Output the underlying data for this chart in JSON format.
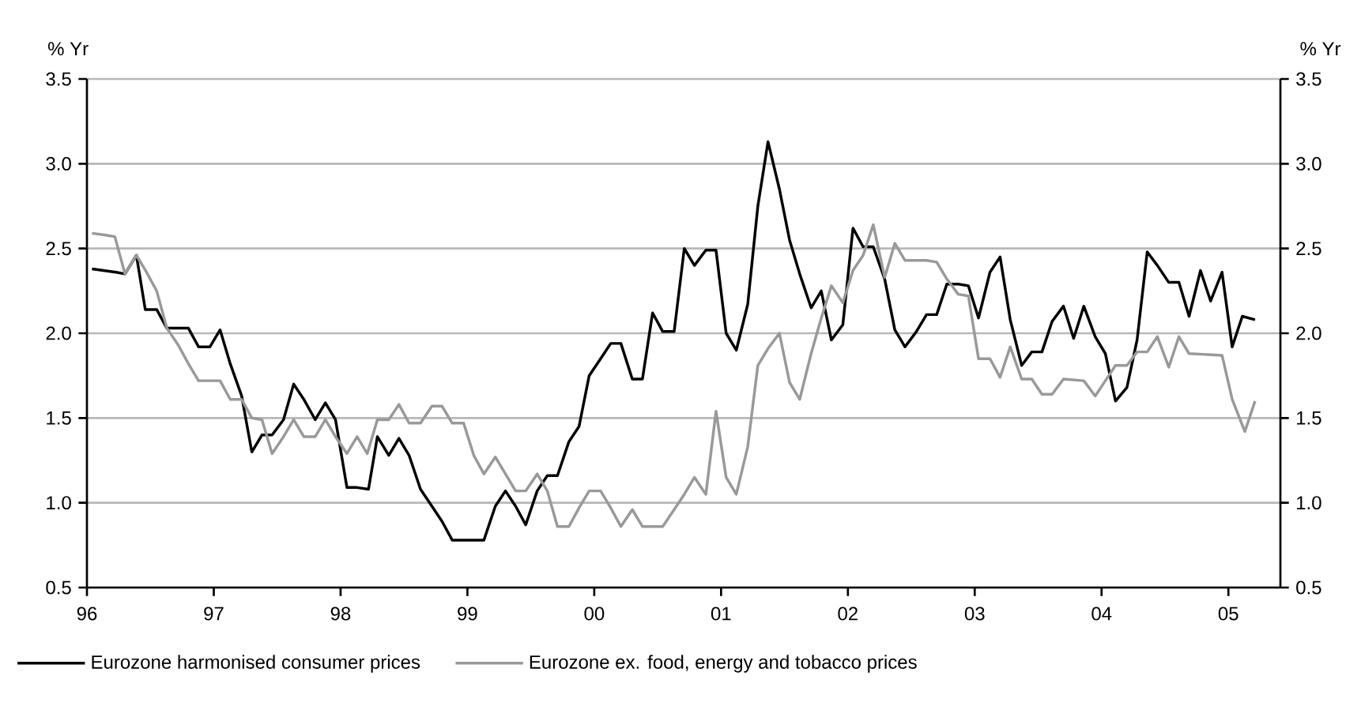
{
  "chart_data": {
    "type": "line",
    "ylabel": "% Yr",
    "y2label": "% Yr",
    "xlim": [
      1996,
      2005.41
    ],
    "xticks": [
      {
        "value": 1996,
        "label": "96"
      },
      {
        "value": 1997,
        "label": "97"
      },
      {
        "value": 1998,
        "label": "98"
      },
      {
        "value": 1999,
        "label": "99"
      },
      {
        "value": 2000,
        "label": "00"
      },
      {
        "value": 2001,
        "label": "01"
      },
      {
        "value": 2002,
        "label": "02"
      },
      {
        "value": 2003,
        "label": "03"
      },
      {
        "value": 2004,
        "label": "04"
      },
      {
        "value": 2005,
        "label": "05"
      }
    ],
    "ylim": [
      0.5,
      3.5
    ],
    "yticks": [
      0.5,
      {
        "value": 1,
        "label": "1.0"
      },
      1.5,
      {
        "value": 2,
        "label": "2.0"
      },
      2.5,
      {
        "value": 3,
        "label": "3.0"
      },
      3.5
    ],
    "y2lim": [
      0.5,
      3.5
    ],
    "y2ticks": [
      0.5,
      {
        "value": 1,
        "label": "1.0"
      },
      1.5,
      {
        "value": 2,
        "label": "2.0"
      },
      2.5,
      {
        "value": 3,
        "label": "3.0"
      },
      3.5
    ],
    "grid": "y",
    "legend": "bottom",
    "marker": "none",
    "line_style": "solid",
    "series": [
      {
        "name": "Eurozone harmonised consumer prices",
        "color": "#000000",
        "x": [
          1996.04,
          1996.23,
          1996.3,
          1996.39,
          1996.46,
          1996.55,
          1996.63,
          1996.8,
          1996.88,
          1996.97,
          1997.05,
          1997.13,
          1997.22,
          1997.3,
          1997.38,
          1997.46,
          1997.55,
          1997.63,
          1997.71,
          1997.8,
          1997.88,
          1997.96,
          1998.05,
          1998.13,
          1998.22,
          1998.29,
          1998.38,
          1998.46,
          1998.54,
          1998.63,
          1998.72,
          1998.8,
          1998.88,
          1999.13,
          1999.22,
          1999.3,
          1999.38,
          1999.46,
          1999.55,
          1999.63,
          1999.71,
          1999.8,
          1999.88,
          1999.96,
          2000.05,
          2000.13,
          2000.21,
          2000.3,
          2000.38,
          2000.46,
          2000.54,
          2000.63,
          2000.71,
          2000.79,
          2000.88,
          2000.96,
          2001.04,
          2001.12,
          2001.21,
          2001.29,
          2001.37,
          2001.46,
          2001.54,
          2001.62,
          2001.71,
          2001.79,
          2001.87,
          2001.96,
          2002.04,
          2002.12,
          2002.2,
          2002.29,
          2002.37,
          2002.45,
          2002.54,
          2002.62,
          2002.7,
          2002.78,
          2002.87,
          2002.95,
          2003.03,
          2003.12,
          2003.2,
          2003.28,
          2003.37,
          2003.45,
          2003.53,
          2003.61,
          2003.7,
          2003.78,
          2003.86,
          2003.95,
          2004.03,
          2004.11,
          2004.2,
          2004.28,
          2004.36,
          2004.44,
          2004.53,
          2004.61,
          2004.69,
          2004.78,
          2004.86,
          2004.95,
          2005.03,
          2005.11,
          2005.21
        ],
        "values": [
          2.38,
          2.36,
          2.35,
          2.46,
          2.14,
          2.14,
          2.03,
          2.03,
          1.92,
          1.92,
          2.02,
          1.82,
          1.63,
          1.3,
          1.4,
          1.4,
          1.49,
          1.7,
          1.61,
          1.49,
          1.59,
          1.49,
          1.09,
          1.09,
          1.08,
          1.39,
          1.28,
          1.38,
          1.28,
          1.08,
          0.98,
          0.89,
          0.78,
          0.78,
          0.98,
          1.07,
          0.98,
          0.87,
          1.07,
          1.16,
          1.16,
          1.36,
          1.45,
          1.75,
          1.85,
          1.94,
          1.94,
          1.73,
          1.73,
          2.12,
          2.01,
          2.01,
          2.5,
          2.4,
          2.49,
          2.49,
          2.0,
          1.9,
          2.17,
          2.75,
          3.13,
          2.85,
          2.55,
          2.35,
          2.15,
          2.25,
          1.96,
          2.05,
          2.62,
          2.51,
          2.51,
          2.32,
          2.02,
          1.92,
          2.01,
          2.11,
          2.11,
          2.29,
          2.29,
          2.28,
          2.09,
          2.36,
          2.45,
          2.08,
          1.81,
          1.89,
          1.89,
          2.07,
          2.16,
          1.97,
          2.16,
          1.98,
          1.88,
          1.6,
          1.68,
          1.96,
          2.48,
          2.4,
          2.3,
          2.3,
          2.1,
          2.37,
          2.19,
          2.36,
          1.92,
          2.1,
          2.08
        ]
      },
      {
        "name": "Eurozone ex. food, energy and tobacco prices",
        "color": "#999999",
        "x": [
          1996.04,
          1996.14,
          1996.22,
          1996.3,
          1996.39,
          1996.47,
          1996.55,
          1996.63,
          1996.72,
          1996.8,
          1996.88,
          1996.97,
          1997.05,
          1997.13,
          1997.22,
          1997.3,
          1997.38,
          1997.46,
          1997.55,
          1997.63,
          1997.71,
          1997.8,
          1997.88,
          1997.96,
          1998.05,
          1998.13,
          1998.21,
          1998.29,
          1998.38,
          1998.46,
          1998.54,
          1998.63,
          1998.72,
          1998.8,
          1998.88,
          1998.97,
          1999.05,
          1999.13,
          1999.22,
          1999.3,
          1999.38,
          1999.46,
          1999.55,
          1999.63,
          1999.71,
          1999.8,
          1999.88,
          1999.96,
          2000.05,
          2000.13,
          2000.21,
          2000.3,
          2000.38,
          2000.54,
          2000.63,
          2000.71,
          2000.79,
          2000.88,
          2000.96,
          2001.04,
          2001.12,
          2001.21,
          2001.29,
          2001.37,
          2001.46,
          2001.54,
          2001.62,
          2001.71,
          2001.79,
          2001.87,
          2001.96,
          2002.04,
          2002.12,
          2002.2,
          2002.29,
          2002.37,
          2002.45,
          2002.62,
          2002.7,
          2002.78,
          2002.87,
          2002.95,
          2003.03,
          2003.12,
          2003.2,
          2003.28,
          2003.37,
          2003.45,
          2003.53,
          2003.61,
          2003.7,
          2003.86,
          2003.95,
          2004.03,
          2004.11,
          2004.2,
          2004.28,
          2004.36,
          2004.44,
          2004.53,
          2004.61,
          2004.69,
          2004.95,
          2005.03,
          2005.13,
          2005.21
        ],
        "values": [
          2.59,
          2.58,
          2.57,
          2.35,
          2.46,
          2.36,
          2.25,
          2.03,
          1.93,
          1.82,
          1.72,
          1.72,
          1.72,
          1.61,
          1.61,
          1.5,
          1.49,
          1.29,
          1.39,
          1.49,
          1.39,
          1.39,
          1.49,
          1.39,
          1.29,
          1.39,
          1.29,
          1.49,
          1.49,
          1.58,
          1.47,
          1.47,
          1.57,
          1.57,
          1.47,
          1.47,
          1.28,
          1.17,
          1.27,
          1.17,
          1.07,
          1.07,
          1.17,
          1.07,
          0.86,
          0.86,
          0.97,
          1.07,
          1.07,
          0.97,
          0.86,
          0.96,
          0.86,
          0.86,
          0.96,
          1.05,
          1.15,
          1.05,
          1.54,
          1.15,
          1.05,
          1.33,
          1.81,
          1.91,
          2.0,
          1.71,
          1.61,
          1.88,
          2.09,
          2.28,
          2.18,
          2.37,
          2.46,
          2.64,
          2.33,
          2.53,
          2.43,
          2.43,
          2.42,
          2.32,
          2.23,
          2.22,
          1.85,
          1.85,
          1.74,
          1.92,
          1.73,
          1.73,
          1.64,
          1.64,
          1.73,
          1.72,
          1.63,
          1.72,
          1.81,
          1.81,
          1.89,
          1.89,
          1.98,
          1.8,
          1.98,
          1.88,
          1.87,
          1.61,
          1.42,
          1.6
        ]
      }
    ]
  }
}
